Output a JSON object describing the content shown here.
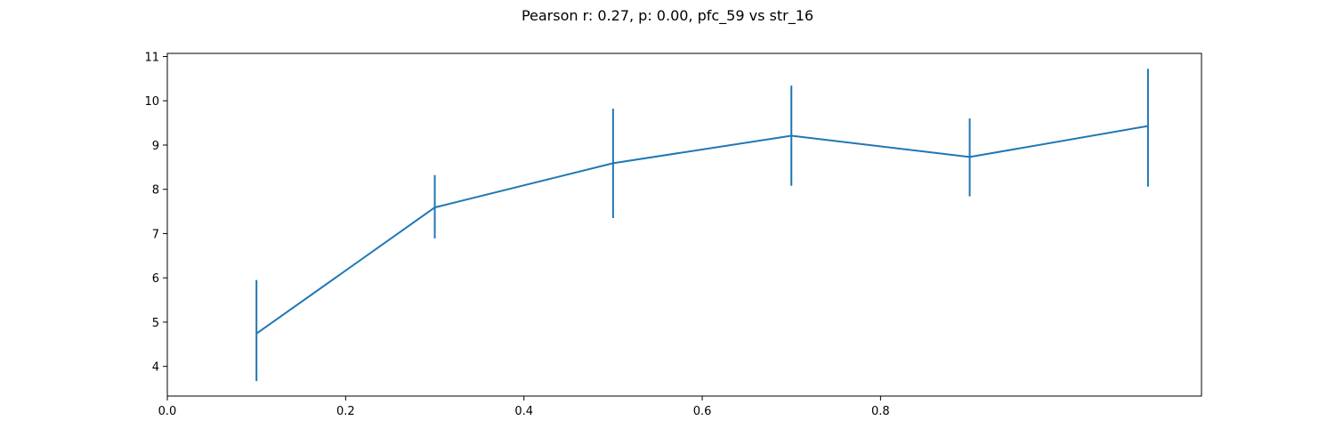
{
  "chart_data": {
    "type": "line",
    "title": "Pearson r: 0.27, p: 0.00, pfc_59 vs str_16",
    "xlabel": "",
    "ylabel": "",
    "xlim": [
      0.0,
      1.16
    ],
    "ylim": [
      3.33,
      11.07
    ],
    "x_ticks": [
      0.0,
      0.2,
      0.4,
      0.6,
      0.8
    ],
    "x_tick_labels": [
      "0.0",
      "0.2",
      "0.4",
      "0.6",
      "0.8"
    ],
    "y_ticks": [
      4,
      5,
      6,
      7,
      8,
      9,
      10,
      11
    ],
    "y_tick_labels": [
      "4",
      "5",
      "6",
      "7",
      "8",
      "9",
      "10",
      "11"
    ],
    "grid": false,
    "series": [
      {
        "color": "#1f77b4",
        "x": [
          0.1,
          0.3,
          0.5,
          0.7,
          0.9,
          1.1
        ],
        "y": [
          4.74,
          7.59,
          8.59,
          9.21,
          8.73,
          9.43
        ],
        "err_low": [
          3.67,
          6.89,
          7.35,
          8.08,
          7.84,
          8.06
        ],
        "err_high": [
          5.95,
          8.32,
          9.82,
          10.34,
          9.6,
          10.72
        ]
      }
    ]
  }
}
